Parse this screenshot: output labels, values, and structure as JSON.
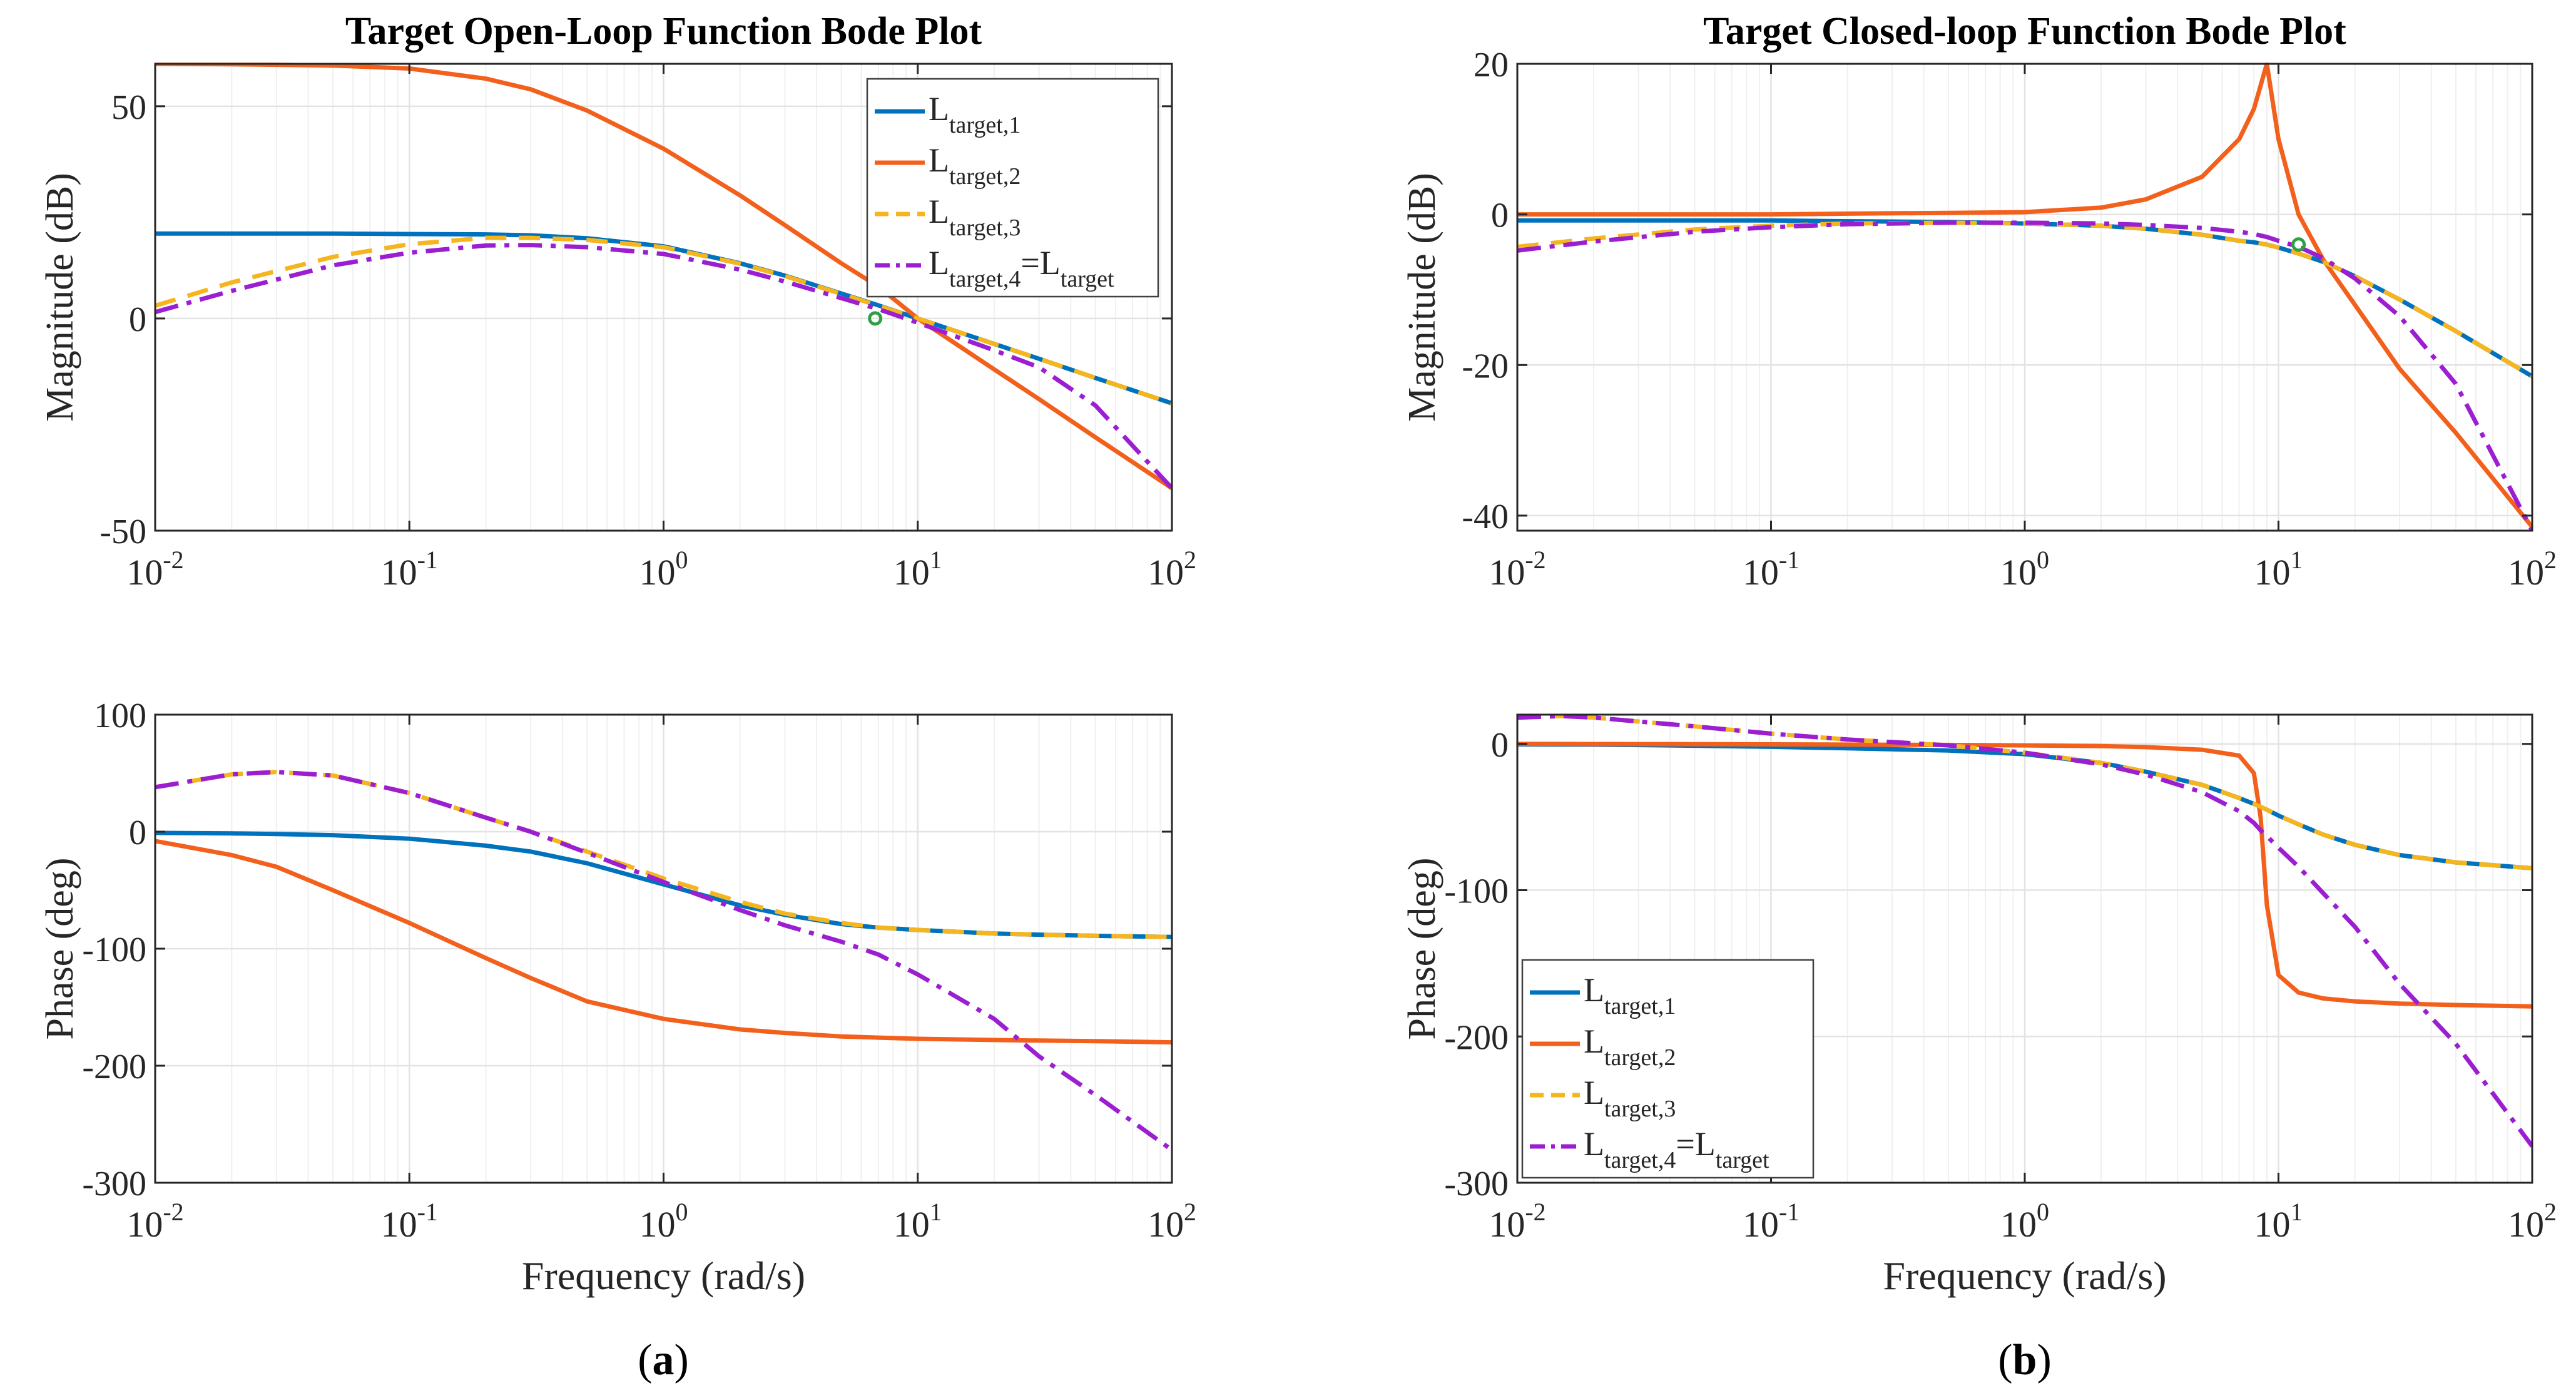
{
  "figure": {
    "panel_labels": [
      "(a)",
      "(b)"
    ],
    "panel_label_parts": [
      {
        "open": "(",
        "letter": "a",
        "close": ")"
      },
      {
        "open": "(",
        "letter": "b",
        "close": ")"
      }
    ]
  },
  "colors": {
    "L1": "#0072BD",
    "L2": "#F2601C",
    "L3": "#F5B51F",
    "L4": "#9B1FD1",
    "marker": "#2EA043",
    "axis": "#262626",
    "grid": "#e3e3e3"
  },
  "legend_entries": [
    {
      "base": "L",
      "sub": "target,1"
    },
    {
      "base": "L",
      "sub": "target,2"
    },
    {
      "base": "L",
      "sub": "target,3"
    },
    {
      "base": "L",
      "sub": "target,4",
      "suffix": "=L",
      "suffix_sub": "target"
    }
  ],
  "chart_data": [
    {
      "id": "open-magnitude",
      "type": "line",
      "title": "Target Open-Loop Function Bode Plot",
      "xlabel": "",
      "ylabel": "Magnitude (dB)",
      "xscale": "log",
      "xlim": [
        0.01,
        100
      ],
      "ylim": [
        -50,
        60
      ],
      "yticks": [
        -50,
        0,
        50
      ],
      "xticks": [
        {
          "base": "10",
          "exp": "-2"
        },
        {
          "base": "10",
          "exp": "-1"
        },
        {
          "base": "10",
          "exp": "0"
        },
        {
          "base": "10",
          "exp": "1"
        },
        {
          "base": "10",
          "exp": "2"
        }
      ],
      "legend": "top-right",
      "grid": true,
      "x": [
        0.01,
        0.02,
        0.05,
        0.1,
        0.2,
        0.3,
        0.5,
        1,
        2,
        3,
        5,
        7,
        10,
        20,
        30,
        50,
        100
      ],
      "series": [
        {
          "name": "L_target,1",
          "style": "solid",
          "values": [
            20,
            20,
            20,
            19.9,
            19.8,
            19.6,
            18.9,
            17,
            13,
            10.1,
            5.9,
            3.1,
            0,
            -6,
            -9.5,
            -14,
            -20
          ]
        },
        {
          "name": "L_target,2",
          "style": "solid",
          "values": [
            60,
            59.9,
            59.6,
            58.9,
            56.5,
            54,
            49,
            40,
            29,
            22,
            13,
            7.5,
            0,
            -12,
            -19,
            -28,
            -40
          ]
        },
        {
          "name": "L_target,3",
          "style": "dashed",
          "values": [
            3,
            8.5,
            14.5,
            17.5,
            19,
            19,
            18.5,
            16.8,
            12.9,
            10,
            5.8,
            3,
            0,
            -6,
            -9.5,
            -14,
            -20
          ]
        },
        {
          "name": "L_target,4 = L_target",
          "style": "dashdot",
          "values": [
            1.5,
            6.5,
            12.5,
            15.5,
            17.2,
            17.3,
            16.8,
            15.2,
            11.5,
            8.7,
            4.8,
            2.2,
            -1,
            -7.5,
            -11.5,
            -20.5,
            -40
          ]
        }
      ],
      "markers": [
        {
          "x": 6.8,
          "y": 0
        }
      ]
    },
    {
      "id": "open-phase",
      "type": "line",
      "title": "",
      "xlabel": "Frequency (rad/s)",
      "ylabel": "Phase (deg)",
      "xscale": "log",
      "xlim": [
        0.01,
        100
      ],
      "ylim": [
        -300,
        100
      ],
      "yticks": [
        -300,
        -200,
        -100,
        0,
        100
      ],
      "xticks": [
        {
          "base": "10",
          "exp": "-2"
        },
        {
          "base": "10",
          "exp": "-1"
        },
        {
          "base": "10",
          "exp": "0"
        },
        {
          "base": "10",
          "exp": "1"
        },
        {
          "base": "10",
          "exp": "2"
        }
      ],
      "grid": true,
      "x": [
        0.01,
        0.02,
        0.03,
        0.05,
        0.1,
        0.2,
        0.3,
        0.5,
        1,
        2,
        3,
        5,
        7,
        10,
        20,
        30,
        50,
        100
      ],
      "series": [
        {
          "name": "L_target,1",
          "style": "solid",
          "values": [
            -1,
            -1.5,
            -2,
            -3,
            -6,
            -12,
            -17,
            -27,
            -45,
            -63,
            -71,
            -79,
            -82,
            -84,
            -87,
            -88,
            -89,
            -90
          ]
        },
        {
          "name": "L_target,2",
          "style": "solid",
          "values": [
            -8,
            -20,
            -30,
            -50,
            -78,
            -108,
            -125,
            -145,
            -160,
            -169,
            -172,
            -175,
            -176,
            -177,
            -178,
            -178.5,
            -179,
            -180
          ]
        },
        {
          "name": "L_target,3",
          "style": "dashed",
          "values": [
            38,
            49,
            51,
            48,
            33,
            12,
            0,
            -17,
            -40,
            -60,
            -70,
            -78,
            -82,
            -84,
            -87,
            -88,
            -89,
            -90
          ]
        },
        {
          "name": "L_target,4 = L_target",
          "style": "dashdot",
          "values": [
            38,
            49,
            51,
            48,
            33,
            12,
            0,
            -18,
            -43,
            -67,
            -80,
            -94,
            -105,
            -122,
            -160,
            -192,
            -225,
            -272
          ]
        }
      ]
    },
    {
      "id": "closed-magnitude",
      "type": "line",
      "title": "Target Closed-loop Function Bode Plot",
      "xlabel": "",
      "ylabel": "Magnitude (dB)",
      "xscale": "log",
      "xlim": [
        0.01,
        100
      ],
      "ylim": [
        -42,
        20
      ],
      "yticks": [
        -40,
        -20,
        0,
        20
      ],
      "xticks": [
        {
          "base": "10",
          "exp": "-2"
        },
        {
          "base": "10",
          "exp": "-1"
        },
        {
          "base": "10",
          "exp": "0"
        },
        {
          "base": "10",
          "exp": "1"
        },
        {
          "base": "10",
          "exp": "2"
        }
      ],
      "grid": true,
      "x": [
        0.01,
        0.02,
        0.05,
        0.1,
        0.2,
        0.5,
        1,
        2,
        3,
        5,
        7,
        8,
        9,
        10,
        12,
        15,
        20,
        30,
        50,
        100
      ],
      "series": [
        {
          "name": "L_target,1",
          "style": "solid",
          "values": [
            -0.8,
            -0.8,
            -0.8,
            -0.8,
            -0.9,
            -1,
            -1.2,
            -1.5,
            -1.9,
            -2.7,
            -3.5,
            -3.7,
            -4,
            -4.4,
            -5.2,
            -6.3,
            -8.2,
            -11.3,
            -15.5,
            -21.5
          ]
        },
        {
          "name": "L_target,2",
          "style": "solid",
          "values": [
            0,
            0,
            0,
            0,
            0.1,
            0.2,
            0.3,
            0.9,
            2,
            5,
            10,
            14,
            20,
            10,
            0,
            -6,
            -12,
            -20.5,
            -29,
            -41.5
          ]
        },
        {
          "name": "L_target,3",
          "style": "dashed",
          "values": [
            -4.3,
            -3.2,
            -2,
            -1.5,
            -1.2,
            -1.1,
            -1.2,
            -1.5,
            -1.9,
            -2.7,
            -3.5,
            -3.7,
            -4,
            -4.4,
            -5.2,
            -6.3,
            -8.2,
            -11.3,
            -15.5,
            -21.5
          ]
        },
        {
          "name": "L_target,4 = L_target",
          "style": "dashdot",
          "values": [
            -4.8,
            -3.6,
            -2.3,
            -1.7,
            -1.3,
            -1.1,
            -1.1,
            -1.2,
            -1.4,
            -1.8,
            -2.3,
            -2.6,
            -3,
            -3.5,
            -4.3,
            -5.8,
            -8.5,
            -13.5,
            -22.5,
            -42
          ]
        }
      ],
      "markers": [
        {
          "x": 12,
          "y": -4
        }
      ]
    },
    {
      "id": "closed-phase",
      "type": "line",
      "title": "",
      "xlabel": "Frequency (rad/s)",
      "ylabel": "Phase (deg)",
      "xscale": "log",
      "xlim": [
        0.01,
        100
      ],
      "ylim": [
        -300,
        20
      ],
      "yticks": [
        -300,
        -200,
        -100,
        0
      ],
      "xticks": [
        {
          "base": "10",
          "exp": "-2"
        },
        {
          "base": "10",
          "exp": "-1"
        },
        {
          "base": "10",
          "exp": "0"
        },
        {
          "base": "10",
          "exp": "1"
        },
        {
          "base": "10",
          "exp": "2"
        }
      ],
      "legend": "bottom-left",
      "grid": true,
      "x": [
        0.01,
        0.015,
        0.02,
        0.05,
        0.1,
        0.2,
        0.5,
        1,
        2,
        3,
        5,
        7,
        8,
        8.5,
        9,
        10,
        12,
        15,
        20,
        30,
        50,
        100
      ],
      "series": [
        {
          "name": "L_target,1",
          "style": "solid",
          "values": [
            -0.3,
            -0.4,
            -0.5,
            -1.2,
            -2,
            -3,
            -4.5,
            -7,
            -13,
            -19,
            -28,
            -37,
            -41,
            -43,
            -45,
            -49,
            -55,
            -62,
            -69,
            -76,
            -81,
            -85
          ]
        },
        {
          "name": "L_target,2",
          "style": "solid",
          "values": [
            0,
            0,
            -0.1,
            -0.2,
            -0.3,
            -0.5,
            -0.7,
            -1,
            -1.5,
            -2.2,
            -4,
            -8,
            -20,
            -50,
            -110,
            -158,
            -170,
            -174,
            -176,
            -177.5,
            -178.5,
            -179.5
          ]
        },
        {
          "name": "L_target,3",
          "style": "dashed",
          "values": [
            18,
            19,
            18,
            12,
            7,
            3,
            -1,
            -6,
            -13,
            -19,
            -28,
            -37,
            -41,
            -43,
            -45,
            -49,
            -55,
            -62,
            -69,
            -76,
            -81,
            -85
          ]
        },
        {
          "name": "L_target,4 = L_target",
          "style": "dashdot",
          "values": [
            18,
            19,
            18,
            12,
            7,
            3,
            -1,
            -6,
            -14,
            -21,
            -33,
            -46,
            -54,
            -59,
            -63,
            -71,
            -84,
            -102,
            -125,
            -164,
            -205,
            -275
          ]
        }
      ]
    }
  ]
}
